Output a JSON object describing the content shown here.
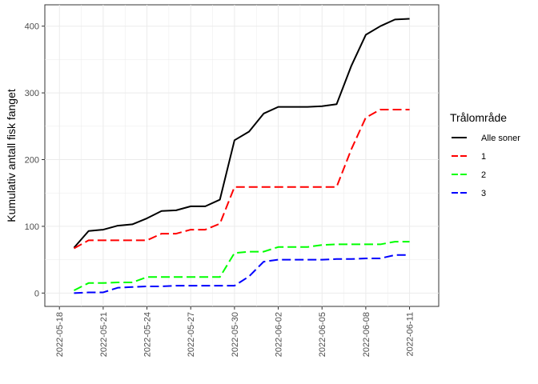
{
  "chart_data": {
    "type": "line",
    "xlabel": "",
    "ylabel": "Kumulativ antall fisk fanget",
    "x_ticks": [
      "2022-05-18",
      "2022-05-21",
      "2022-05-24",
      "2022-05-27",
      "2022-05-30",
      "2022-06-02",
      "2022-06-05",
      "2022-06-08",
      "2022-06-11"
    ],
    "y_ticks": [
      0,
      100,
      200,
      300,
      400
    ],
    "xlim": [
      "2022-05-17",
      "2022-06-13"
    ],
    "ylim": [
      -20,
      432
    ],
    "grid": true,
    "legend": {
      "title": "Trålområde",
      "placement": "right"
    },
    "series": [
      {
        "name": "Alle soner",
        "color": "#000000",
        "dash": "solid",
        "points": [
          [
            "2022-05-19",
            68
          ],
          [
            "2022-05-20",
            93
          ],
          [
            "2022-05-21",
            95
          ],
          [
            "2022-05-22",
            101
          ],
          [
            "2022-05-23",
            103
          ],
          [
            "2022-05-24",
            112
          ],
          [
            "2022-05-25",
            123
          ],
          [
            "2022-05-26",
            124
          ],
          [
            "2022-05-27",
            130
          ],
          [
            "2022-05-28",
            130
          ],
          [
            "2022-05-29",
            140
          ],
          [
            "2022-05-30",
            229
          ],
          [
            "2022-05-31",
            242
          ],
          [
            "2022-06-01",
            269
          ],
          [
            "2022-06-02",
            279
          ],
          [
            "2022-06-03",
            279
          ],
          [
            "2022-06-04",
            279
          ],
          [
            "2022-06-05",
            280
          ],
          [
            "2022-06-06",
            283
          ],
          [
            "2022-06-07",
            340
          ],
          [
            "2022-06-08",
            387
          ],
          [
            "2022-06-09",
            400
          ],
          [
            "2022-06-10",
            410
          ],
          [
            "2022-06-11",
            411
          ]
        ]
      },
      {
        "name": "1",
        "color": "#ff0000",
        "dash": "dashed",
        "points": [
          [
            "2022-05-19",
            67
          ],
          [
            "2022-05-20",
            79
          ],
          [
            "2022-05-21",
            79
          ],
          [
            "2022-05-22",
            79
          ],
          [
            "2022-05-23",
            79
          ],
          [
            "2022-05-24",
            79
          ],
          [
            "2022-05-25",
            89
          ],
          [
            "2022-05-26",
            89
          ],
          [
            "2022-05-27",
            95
          ],
          [
            "2022-05-28",
            95
          ],
          [
            "2022-05-29",
            104
          ],
          [
            "2022-05-30",
            159
          ],
          [
            "2022-05-31",
            159
          ],
          [
            "2022-06-01",
            159
          ],
          [
            "2022-06-02",
            159
          ],
          [
            "2022-06-03",
            159
          ],
          [
            "2022-06-04",
            159
          ],
          [
            "2022-06-05",
            159
          ],
          [
            "2022-06-06",
            159
          ],
          [
            "2022-06-07",
            215
          ],
          [
            "2022-06-08",
            263
          ],
          [
            "2022-06-09",
            275
          ],
          [
            "2022-06-10",
            275
          ],
          [
            "2022-06-11",
            275
          ]
        ]
      },
      {
        "name": "2",
        "color": "#00ff00",
        "dash": "dashed",
        "points": [
          [
            "2022-05-19",
            4
          ],
          [
            "2022-05-20",
            15
          ],
          [
            "2022-05-21",
            15
          ],
          [
            "2022-05-22",
            16
          ],
          [
            "2022-05-23",
            16
          ],
          [
            "2022-05-24",
            24
          ],
          [
            "2022-05-25",
            24
          ],
          [
            "2022-05-26",
            24
          ],
          [
            "2022-05-27",
            24
          ],
          [
            "2022-05-28",
            24
          ],
          [
            "2022-05-29",
            24
          ],
          [
            "2022-05-30",
            60
          ],
          [
            "2022-05-31",
            62
          ],
          [
            "2022-06-01",
            62
          ],
          [
            "2022-06-02",
            69
          ],
          [
            "2022-06-03",
            69
          ],
          [
            "2022-06-04",
            69
          ],
          [
            "2022-06-05",
            72
          ],
          [
            "2022-06-06",
            73
          ],
          [
            "2022-06-07",
            73
          ],
          [
            "2022-06-08",
            73
          ],
          [
            "2022-06-09",
            73
          ],
          [
            "2022-06-10",
            77
          ],
          [
            "2022-06-11",
            77
          ]
        ]
      },
      {
        "name": "3",
        "color": "#0000ff",
        "dash": "dashed",
        "points": [
          [
            "2022-05-19",
            0
          ],
          [
            "2022-05-20",
            1
          ],
          [
            "2022-05-21",
            1
          ],
          [
            "2022-05-22",
            8
          ],
          [
            "2022-05-23",
            9
          ],
          [
            "2022-05-24",
            10
          ],
          [
            "2022-05-25",
            10
          ],
          [
            "2022-05-26",
            11
          ],
          [
            "2022-05-27",
            11
          ],
          [
            "2022-05-28",
            11
          ],
          [
            "2022-05-29",
            11
          ],
          [
            "2022-05-30",
            11
          ],
          [
            "2022-05-31",
            25
          ],
          [
            "2022-06-01",
            47
          ],
          [
            "2022-06-02",
            50
          ],
          [
            "2022-06-03",
            50
          ],
          [
            "2022-06-04",
            50
          ],
          [
            "2022-06-05",
            50
          ],
          [
            "2022-06-06",
            51
          ],
          [
            "2022-06-07",
            51
          ],
          [
            "2022-06-08",
            52
          ],
          [
            "2022-06-09",
            52
          ],
          [
            "2022-06-10",
            57
          ],
          [
            "2022-06-11",
            57
          ]
        ]
      }
    ]
  }
}
